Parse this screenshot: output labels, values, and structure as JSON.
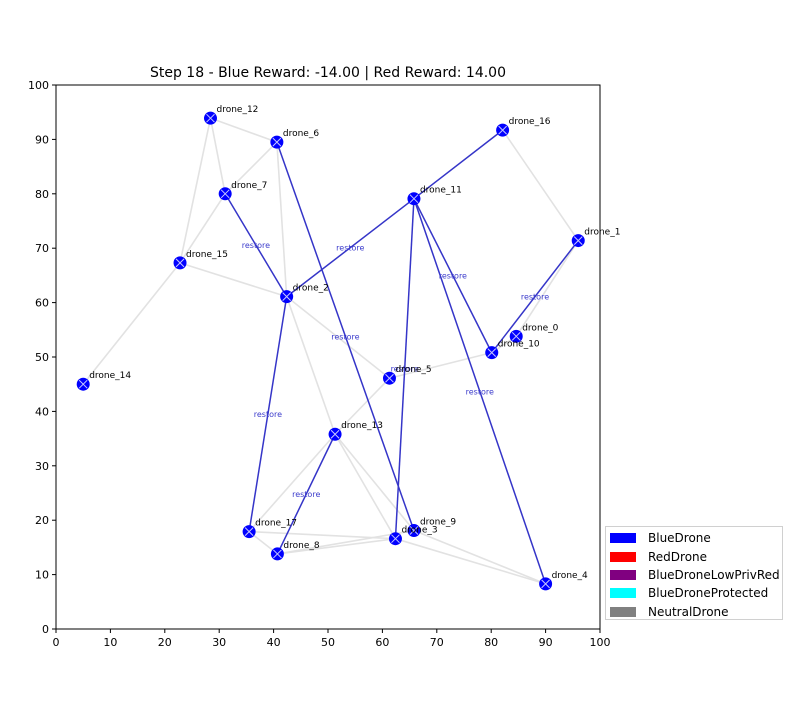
{
  "chart_data": {
    "type": "scatter",
    "title": "Step 18 - Blue Reward: -14.00 | Red Reward: 14.00",
    "xlim": [
      0,
      100
    ],
    "ylim": [
      0,
      100
    ],
    "xticks": [
      0,
      10,
      20,
      30,
      40,
      50,
      60,
      70,
      80,
      90,
      100
    ],
    "yticks": [
      0,
      10,
      20,
      30,
      40,
      50,
      60,
      70,
      80,
      90,
      100
    ],
    "grid": false,
    "legend_placement": "lower-right-outside",
    "nodes": [
      {
        "name": "drone_0",
        "x": 84.6,
        "y": 53.8,
        "type": "BlueDrone"
      },
      {
        "name": "drone_1",
        "x": 96.0,
        "y": 71.4,
        "type": "BlueDrone"
      },
      {
        "name": "drone_2",
        "x": 42.4,
        "y": 61.1,
        "type": "BlueDrone"
      },
      {
        "name": "drone_3",
        "x": 62.4,
        "y": 16.6,
        "type": "BlueDrone"
      },
      {
        "name": "drone_4",
        "x": 90.0,
        "y": 8.3,
        "type": "BlueDrone"
      },
      {
        "name": "drone_5",
        "x": 61.3,
        "y": 46.1,
        "type": "BlueDrone"
      },
      {
        "name": "drone_6",
        "x": 40.6,
        "y": 89.5,
        "type": "BlueDrone"
      },
      {
        "name": "drone_7",
        "x": 31.1,
        "y": 80.0,
        "type": "BlueDrone"
      },
      {
        "name": "drone_8",
        "x": 40.7,
        "y": 13.8,
        "type": "BlueDrone"
      },
      {
        "name": "drone_9",
        "x": 65.8,
        "y": 18.1,
        "type": "BlueDrone"
      },
      {
        "name": "drone_10",
        "x": 80.1,
        "y": 50.8,
        "type": "BlueDrone"
      },
      {
        "name": "drone_11",
        "x": 65.8,
        "y": 79.1,
        "type": "BlueDrone"
      },
      {
        "name": "drone_12",
        "x": 28.4,
        "y": 93.9,
        "type": "BlueDrone"
      },
      {
        "name": "drone_13",
        "x": 51.3,
        "y": 35.8,
        "type": "BlueDrone"
      },
      {
        "name": "drone_14",
        "x": 5.0,
        "y": 45.0,
        "type": "BlueDrone"
      },
      {
        "name": "drone_15",
        "x": 22.8,
        "y": 67.3,
        "type": "BlueDrone"
      },
      {
        "name": "drone_16",
        "x": 82.1,
        "y": 91.7,
        "type": "BlueDrone"
      },
      {
        "name": "drone_17",
        "x": 35.5,
        "y": 17.9,
        "type": "BlueDrone"
      }
    ],
    "action_edges": [
      {
        "from": "drone_11",
        "to": "drone_16",
        "label": ""
      },
      {
        "from": "drone_11",
        "to": "drone_2",
        "label": "restore"
      },
      {
        "from": "drone_11",
        "to": "drone_10",
        "label": "restore"
      },
      {
        "from": "drone_11",
        "to": "drone_4",
        "label": "restore"
      },
      {
        "from": "drone_11",
        "to": "drone_3",
        "label": "restore"
      },
      {
        "from": "drone_1",
        "to": "drone_10",
        "label": "restore"
      },
      {
        "from": "drone_7",
        "to": "drone_2",
        "label": "restore"
      },
      {
        "from": "drone_6",
        "to": "drone_9",
        "label": "restore"
      },
      {
        "from": "drone_2",
        "to": "drone_17",
        "label": "restore"
      },
      {
        "from": "drone_13",
        "to": "drone_8",
        "label": "restore"
      }
    ],
    "background_edges": [
      [
        "drone_12",
        "drone_6"
      ],
      [
        "drone_12",
        "drone_15"
      ],
      [
        "drone_6",
        "drone_7"
      ],
      [
        "drone_6",
        "drone_2"
      ],
      [
        "drone_15",
        "drone_14"
      ],
      [
        "drone_15",
        "drone_7"
      ],
      [
        "drone_15",
        "drone_2"
      ],
      [
        "drone_16",
        "drone_1"
      ],
      [
        "drone_5",
        "drone_10"
      ],
      [
        "drone_5",
        "drone_2"
      ],
      [
        "drone_5",
        "drone_13"
      ],
      [
        "drone_13",
        "drone_9"
      ],
      [
        "drone_13",
        "drone_3"
      ],
      [
        "drone_13",
        "drone_17"
      ],
      [
        "drone_8",
        "drone_3"
      ],
      [
        "drone_8",
        "drone_9"
      ],
      [
        "drone_3",
        "drone_4"
      ],
      [
        "drone_9",
        "drone_4"
      ],
      [
        "drone_17",
        "drone_3"
      ],
      [
        "drone_10",
        "drone_0"
      ],
      [
        "drone_2",
        "drone_13"
      ],
      [
        "drone_7",
        "drone_12"
      ],
      [
        "drone_17",
        "drone_8"
      ],
      [
        "drone_0",
        "drone_1"
      ]
    ],
    "colors": {
      "BlueDrone": "#0000ff",
      "RedDrone": "#ff0000",
      "BlueDroneLowPrivRed": "#800080",
      "BlueDroneProtected": "#00ffff",
      "NeutralDrone": "#808080",
      "action_edge": "#3535c8",
      "background_edge": "#e2e2e2"
    },
    "legend": [
      {
        "label": "BlueDrone",
        "color": "#0000ff"
      },
      {
        "label": "RedDrone",
        "color": "#ff0000"
      },
      {
        "label": "BlueDroneLowPrivRed",
        "color": "#800080"
      },
      {
        "label": "BlueDroneProtected",
        "color": "#00ffff"
      },
      {
        "label": "NeutralDrone",
        "color": "#808080"
      }
    ]
  }
}
